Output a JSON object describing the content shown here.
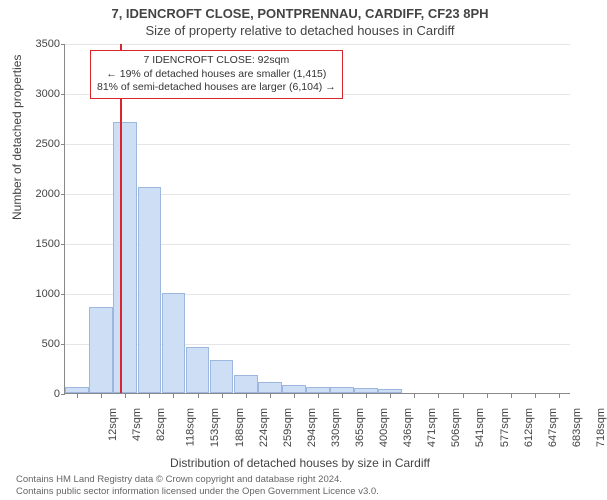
{
  "title_line1": "7, IDENCROFT CLOSE, PONTPRENNAU, CARDIFF, CF23 8PH",
  "title_line2": "Size of property relative to detached houses in Cardiff",
  "y_axis_label": "Number of detached properties",
  "x_axis_label": "Distribution of detached houses by size in Cardiff",
  "footer_line1": "Contains HM Land Registry data © Crown copyright and database right 2024.",
  "footer_line2": "Contains public sector information licensed under the Open Government Licence v3.0.",
  "chart": {
    "type": "histogram",
    "background_color": "#ffffff",
    "grid_color": "#e6e6e6",
    "axis_color": "#888888",
    "bar_fill": "#cedef4",
    "bar_stroke": "#9cb8de",
    "marker_color": "#d8262c",
    "ylim": [
      0,
      3500
    ],
    "ytick_step": 500,
    "yticks": [
      0,
      500,
      1000,
      1500,
      2000,
      2500,
      3000,
      3500
    ],
    "categories": [
      "12sqm",
      "47sqm",
      "82sqm",
      "118sqm",
      "153sqm",
      "188sqm",
      "224sqm",
      "259sqm",
      "294sqm",
      "330sqm",
      "365sqm",
      "400sqm",
      "436sqm",
      "471sqm",
      "506sqm",
      "541sqm",
      "577sqm",
      "612sqm",
      "647sqm",
      "683sqm",
      "718sqm"
    ],
    "values": [
      60,
      860,
      2710,
      2060,
      1000,
      460,
      330,
      180,
      110,
      80,
      60,
      60,
      50,
      40,
      0,
      0,
      0,
      0,
      0,
      0,
      0
    ],
    "marker_category_index": 2,
    "marker_fraction_into_bin": 0.28,
    "title_fontsize": 13,
    "label_fontsize": 12,
    "tick_fontsize": 11,
    "annotation_fontsize": 10.5
  },
  "annotation": {
    "lines": [
      "7 IDENCROFT CLOSE: 92sqm",
      "← 19% of detached houses are smaller (1,415)",
      "81% of semi-detached houses are larger (6,104) →"
    ],
    "border_color": "#d8262c",
    "background_color": "#ffffff"
  }
}
